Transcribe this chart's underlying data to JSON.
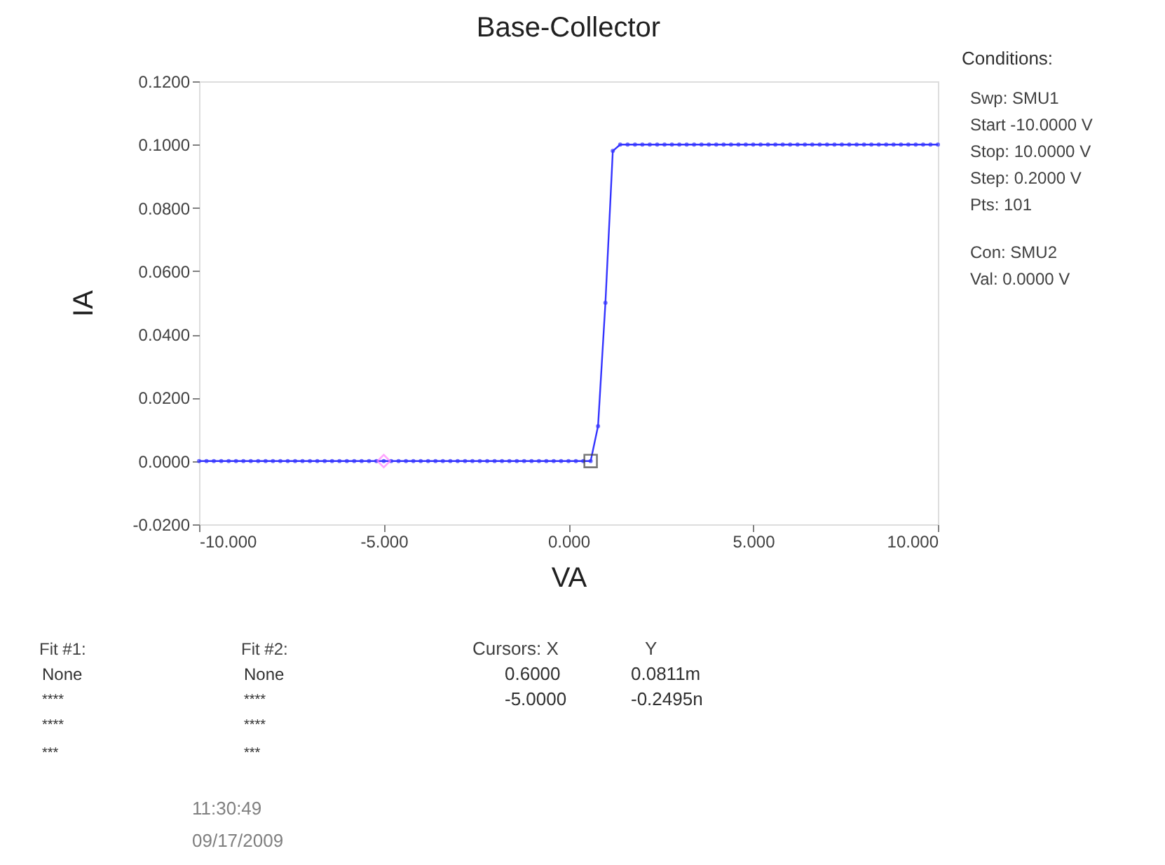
{
  "chart_data": {
    "type": "line",
    "title": "Base-Collector",
    "xlabel": "VA",
    "ylabel": "IA",
    "xlim": [
      -10,
      10
    ],
    "ylim": [
      -0.02,
      0.12
    ],
    "xticks": [
      {
        "value": -10,
        "label": "-10.000"
      },
      {
        "value": -5,
        "label": "-5.000"
      },
      {
        "value": 0,
        "label": "0.000"
      },
      {
        "value": 5,
        "label": "5.000"
      },
      {
        "value": 10,
        "label": "10.000"
      }
    ],
    "yticks": [
      {
        "value": -0.02,
        "label": "-0.0200"
      },
      {
        "value": 0,
        "label": "0.0000"
      },
      {
        "value": 0.02,
        "label": "0.0200"
      },
      {
        "value": 0.04,
        "label": "0.0400"
      },
      {
        "value": 0.06,
        "label": "0.0600"
      },
      {
        "value": 0.08,
        "label": "0.0800"
      },
      {
        "value": 0.1,
        "label": "0.1000"
      },
      {
        "value": 0.12,
        "label": "0.1200"
      }
    ],
    "grid": false,
    "marker": "circle",
    "line_style": "solid",
    "series": [
      {
        "color": "#3333ff",
        "x": [
          -10,
          -9.8,
          -9.6,
          -9.4,
          -9.2,
          -9,
          -8.8,
          -8.6,
          -8.4,
          -8.2,
          -8,
          -7.8,
          -7.6,
          -7.4,
          -7.2,
          -7,
          -6.8,
          -6.6,
          -6.4,
          -6.2,
          -6,
          -5.8,
          -5.6,
          -5.4,
          -5.2,
          -5,
          -4.8,
          -4.6,
          -4.4,
          -4.2,
          -4,
          -3.8,
          -3.6,
          -3.4,
          -3.2,
          -3,
          -2.8,
          -2.6,
          -2.4,
          -2.2,
          -2,
          -1.8,
          -1.6,
          -1.4,
          -1.2,
          -1,
          -0.8,
          -0.6,
          -0.4,
          -0.2,
          0,
          0.2,
          0.4,
          0.6,
          0.8,
          1,
          1.2,
          1.4,
          1.6,
          1.8,
          2,
          2.2,
          2.4,
          2.6,
          2.8,
          3,
          3.2,
          3.4,
          3.6,
          3.8,
          4,
          4.2,
          4.4,
          4.6,
          4.8,
          5,
          5.2,
          5.4,
          5.6,
          5.8,
          6,
          6.2,
          6.4,
          6.6,
          6.8,
          7,
          7.2,
          7.4,
          7.6,
          7.8,
          8,
          8.2,
          8.4,
          8.6,
          8.8,
          9,
          9.2,
          9.4,
          9.6,
          9.8,
          10
        ],
        "values": [
          0,
          0,
          0,
          0,
          0,
          0,
          0,
          0,
          0,
          0,
          0,
          0,
          0,
          0,
          0,
          0,
          0,
          0,
          0,
          0,
          0,
          0,
          0,
          0,
          0,
          0,
          0,
          0,
          0,
          0,
          0,
          0,
          0,
          0,
          0,
          0,
          0,
          0,
          0,
          0,
          0,
          0,
          0,
          0,
          0,
          0,
          0,
          0,
          0,
          0,
          0,
          0,
          0,
          0,
          0.011,
          0.05,
          0.098,
          0.1,
          0.1,
          0.1,
          0.1,
          0.1,
          0.1,
          0.1,
          0.1,
          0.1,
          0.1,
          0.1,
          0.1,
          0.1,
          0.1,
          0.1,
          0.1,
          0.1,
          0.1,
          0.1,
          0.1,
          0.1,
          0.1,
          0.1,
          0.1,
          0.1,
          0.1,
          0.1,
          0.1,
          0.1,
          0.1,
          0.1,
          0.1,
          0.1,
          0.1,
          0.1,
          0.1,
          0.1,
          0.1,
          0.1,
          0.1,
          0.1,
          0.1,
          0.1,
          0.1
        ]
      },
      {
        "type": "scatter",
        "color": "#404040",
        "marker": "square",
        "x": [
          0.6
        ],
        "values": [
          0
        ]
      },
      {
        "type": "scatter",
        "color": "#ff80ff",
        "marker": "diamond",
        "x": [
          -5
        ],
        "values": [
          0
        ]
      }
    ],
    "annotations": [
      "Conditions:",
      "Swp: SMU1",
      "Start -10.0000 V",
      "Stop: 10.0000 V",
      "Step: 0.2000 V",
      "Pts: 101",
      "Con: SMU2",
      "Val: 0.0000 V",
      "Fit #1:",
      "None",
      "****",
      "****",
      "***",
      "Fit #2:",
      "None",
      "****",
      "****",
      "***",
      "Cursors: X",
      "Y",
      "0.6000",
      "0.0811m",
      "-5.0000",
      "-0.2495n",
      "11:30:49",
      "09/17/2009"
    ]
  }
}
